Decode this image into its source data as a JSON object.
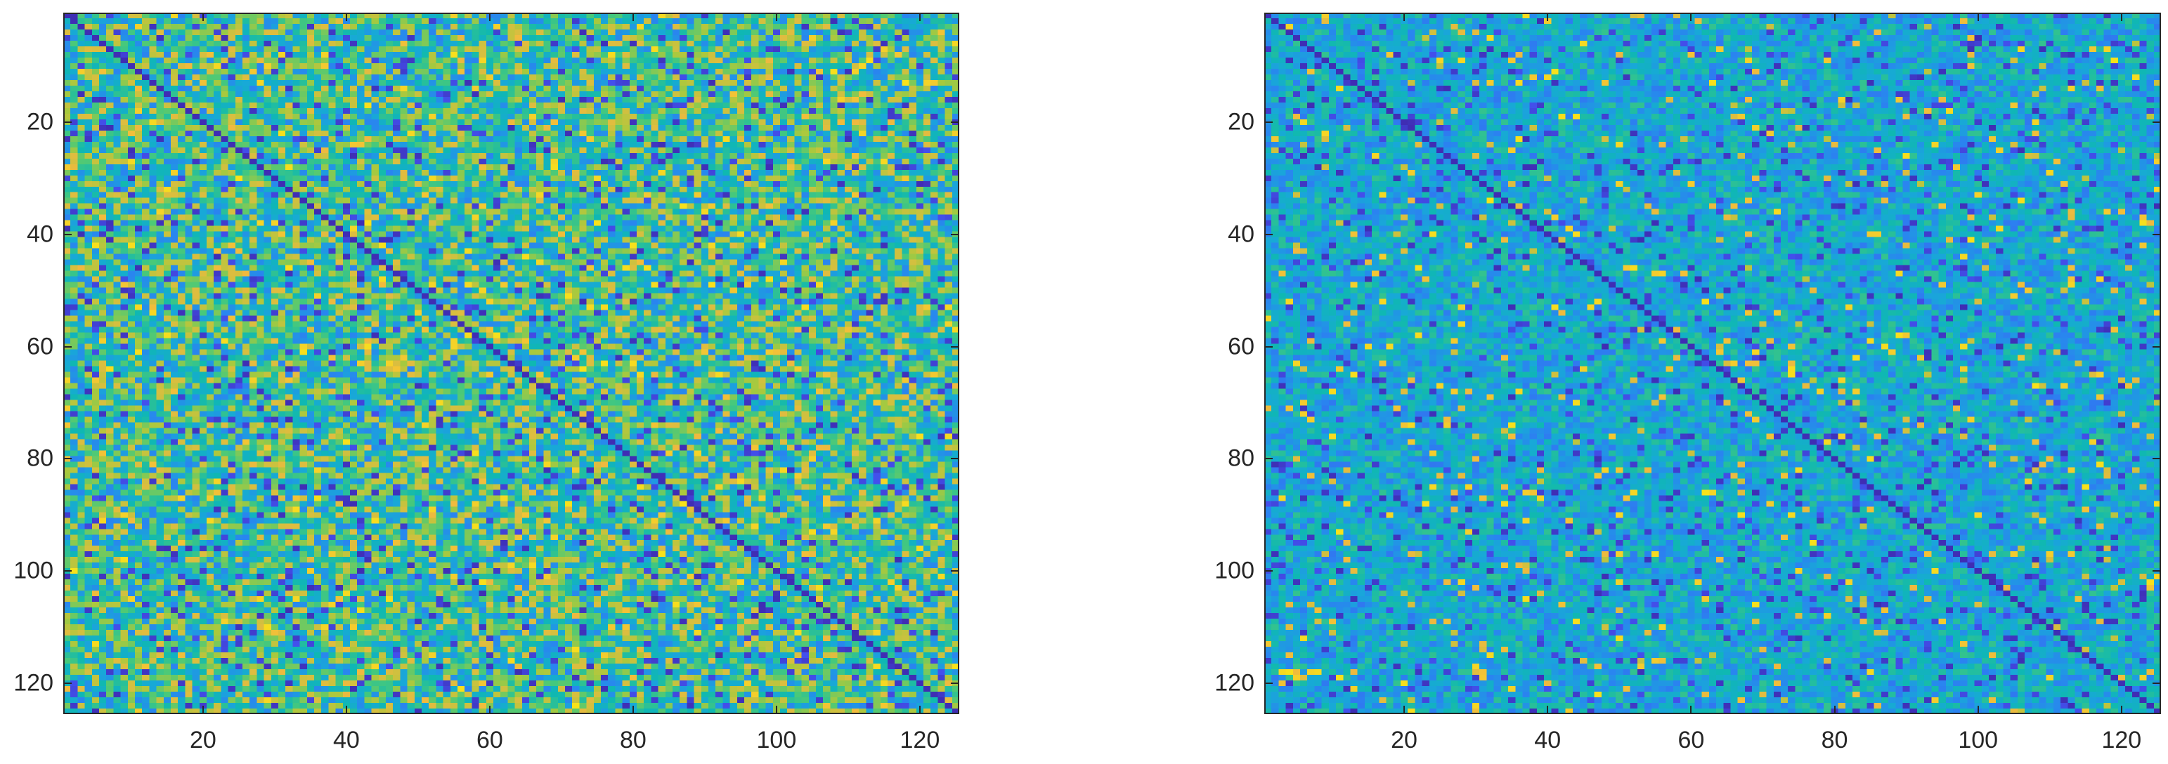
{
  "chart_data": [
    {
      "type": "heatmap",
      "panel": "left",
      "title": "",
      "xlabel": "",
      "ylabel": "",
      "rows": 125,
      "cols": 125,
      "xlim": [
        0.5,
        125.5
      ],
      "ylim": [
        0.5,
        125.5
      ],
      "y_direction": "reversed",
      "x_ticks": [
        20,
        40,
        60,
        80,
        100,
        120
      ],
      "y_ticks": [
        20,
        40,
        60,
        80,
        100,
        120
      ],
      "colormap": "parula",
      "diagonal": "minimum value (dark navy)",
      "background_level": 0.55,
      "noise_spread": 0.3,
      "grid": false
    },
    {
      "type": "heatmap",
      "panel": "right",
      "title": "",
      "xlabel": "",
      "ylabel": "",
      "rows": 125,
      "cols": 125,
      "xlim": [
        0.5,
        125.5
      ],
      "ylim": [
        0.5,
        125.5
      ],
      "y_direction": "reversed",
      "x_ticks": [
        20,
        40,
        60,
        80,
        100,
        120
      ],
      "y_ticks": [
        20,
        40,
        60,
        80,
        100,
        120
      ],
      "colormap": "parula",
      "diagonal": "minimum value (dark blue)",
      "background_level": 0.4,
      "noise_spread": 0.18,
      "grid": false
    }
  ],
  "colors": {
    "parula_stops": [
      "#3e26a8",
      "#4352f0",
      "#2a84f0",
      "#18a8d8",
      "#0fb8b2",
      "#48c97a",
      "#a8c93e",
      "#f0b93f",
      "#f8e21a"
    ],
    "axis": "#262626"
  }
}
